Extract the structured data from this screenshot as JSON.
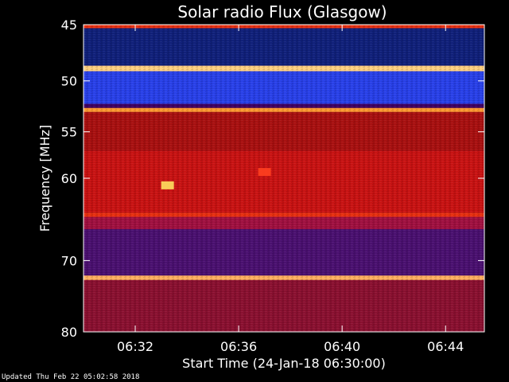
{
  "chart_data": {
    "type": "heatmap",
    "title": "Solar radio Flux (Glasgow)",
    "ylabel": "Frequency [MHz]",
    "xlabel": "Start Time (24-Jan-18 06:30:00)",
    "y_scale": "log",
    "ylim": [
      45,
      80
    ],
    "y_ticks": [
      45,
      50,
      55,
      60,
      70,
      80
    ],
    "xlim": [
      "06:30:00",
      "06:45:30"
    ],
    "x_ticks": [
      "06:32",
      "06:36",
      "06:40",
      "06:44"
    ],
    "bands": [
      {
        "from": 45.0,
        "to": 45.3,
        "color": "#e83010"
      },
      {
        "from": 45.3,
        "to": 48.6,
        "color": "#10207a"
      },
      {
        "from": 48.6,
        "to": 49.1,
        "color": "#ffd080"
      },
      {
        "from": 49.1,
        "to": 52.2,
        "color": "#2840e8"
      },
      {
        "from": 52.2,
        "to": 52.6,
        "color": "#400060"
      },
      {
        "from": 52.6,
        "to": 53.0,
        "color": "#ff9a30"
      },
      {
        "from": 53.0,
        "to": 57.0,
        "color": "#a81010"
      },
      {
        "from": 57.0,
        "to": 64.0,
        "color": "#c81212"
      },
      {
        "from": 64.0,
        "to": 64.5,
        "color": "#e83010"
      },
      {
        "from": 64.5,
        "to": 66.0,
        "color": "#a01040"
      },
      {
        "from": 66.0,
        "to": 72.0,
        "color": "#4a1070"
      },
      {
        "from": 72.0,
        "to": 72.6,
        "color": "#ffb060"
      },
      {
        "from": 72.6,
        "to": 80.0,
        "color": "#8a1030"
      }
    ],
    "bursts": [
      {
        "time": "06:33:15",
        "freq": 60.8,
        "color": "#ffe060"
      },
      {
        "time": "06:37:00",
        "freq": 59.3,
        "color": "#ff4020"
      }
    ]
  },
  "footer": {
    "updated": "Updated Thu Feb 22 05:02:58 2018"
  }
}
